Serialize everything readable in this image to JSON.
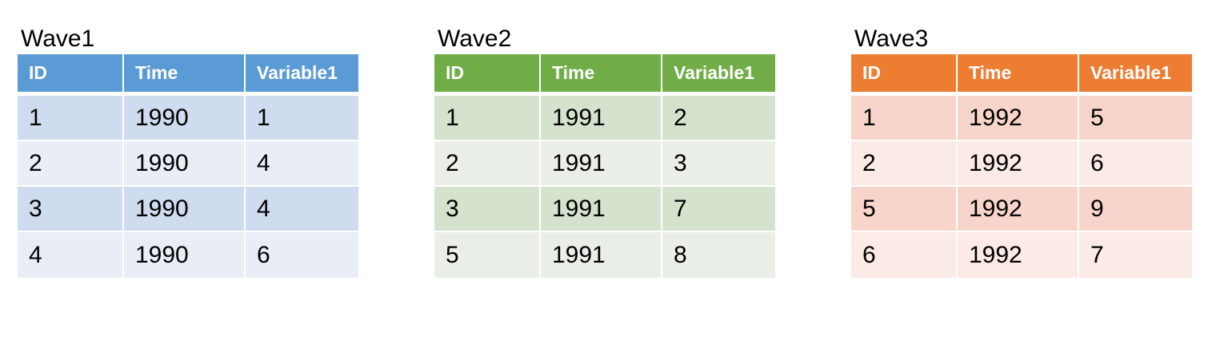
{
  "columns": [
    "ID",
    "Time",
    "Variable1"
  ],
  "waves": [
    {
      "title": "Wave1",
      "colors": {
        "header": "#5B9BD5",
        "row_dark": "#CFDBEE",
        "row_light": "#E8EDF6"
      },
      "rows": [
        [
          "1",
          "1990",
          "1"
        ],
        [
          "2",
          "1990",
          "4"
        ],
        [
          "3",
          "1990",
          "4"
        ],
        [
          "4",
          "1990",
          "6"
        ]
      ]
    },
    {
      "title": "Wave2",
      "colors": {
        "header": "#70AD47",
        "row_dark": "#D5E2CE",
        "row_light": "#E9EFE7"
      },
      "rows": [
        [
          "1",
          "1991",
          "2"
        ],
        [
          "2",
          "1991",
          "3"
        ],
        [
          "3",
          "1991",
          "7"
        ],
        [
          "5",
          "1991",
          "8"
        ]
      ]
    },
    {
      "title": "Wave3",
      "colors": {
        "header": "#ED7D31",
        "row_dark": "#F7D5CB",
        "row_light": "#FBEAE6"
      },
      "rows": [
        [
          "1",
          "1992",
          "5"
        ],
        [
          "2",
          "1992",
          "6"
        ],
        [
          "5",
          "1992",
          "9"
        ],
        [
          "6",
          "1992",
          "7"
        ]
      ]
    }
  ]
}
